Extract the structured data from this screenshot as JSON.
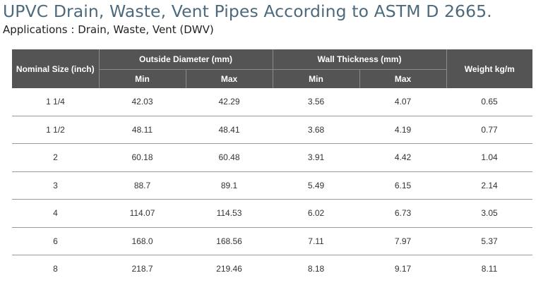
{
  "title": "UPVC Drain, Waste, Vent Pipes According to ASTM D 2665.",
  "subtitle": "Applications : Drain, Waste, Vent (DWV)",
  "table": {
    "headers": {
      "nominal_size": "Nominal Size (inch)",
      "outside_diameter": "Outside Diameter (mm)",
      "wall_thickness": "Wall Thickness (mm)",
      "weight": "Weight kg/m",
      "min": "Min",
      "max": "Max"
    },
    "rows": [
      {
        "size": "1 1/4",
        "od_min": "42.03",
        "od_max": "42.29",
        "wt_min": "3.56",
        "wt_max": "4.07",
        "weight": "0.65"
      },
      {
        "size": "1 1/2",
        "od_min": "48.11",
        "od_max": "48.41",
        "wt_min": "3.68",
        "wt_max": "4.19",
        "weight": "0.77"
      },
      {
        "size": "2",
        "od_min": "60.18",
        "od_max": "60.48",
        "wt_min": "3.91",
        "wt_max": "4.42",
        "weight": "1.04"
      },
      {
        "size": "3",
        "od_min": "88.7",
        "od_max": "89.1",
        "wt_min": "5.49",
        "wt_max": "6.15",
        "weight": "2.14"
      },
      {
        "size": "4",
        "od_min": "114.07",
        "od_max": "114.53",
        "wt_min": "6.02",
        "wt_max": "6.73",
        "weight": "3.05"
      },
      {
        "size": "6",
        "od_min": "168.0",
        "od_max": "168.56",
        "wt_min": "7.11",
        "wt_max": "7.97",
        "weight": "5.37"
      },
      {
        "size": "8",
        "od_min": "218.7",
        "od_max": "219.46",
        "wt_min": "8.18",
        "wt_max": "9.17",
        "weight": "8.11"
      }
    ]
  },
  "colors": {
    "title": "#4d6a7d",
    "header_background": "#545454",
    "header_text": "#ffffff",
    "row_divider": "#9a9a9a"
  }
}
